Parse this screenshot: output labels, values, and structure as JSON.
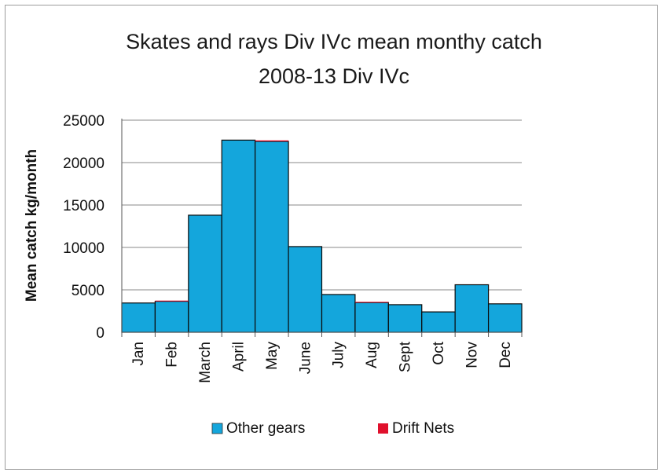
{
  "chart_data": {
    "type": "bar",
    "title_lines": [
      "Skates and rays Div IVc mean monthy catch",
      "2008-13 Div IVc"
    ],
    "ylabel": "Mean catch kg/month",
    "xlabel": "",
    "categories": [
      "Jan",
      "Feb",
      "March",
      "April",
      "May",
      "June",
      "July",
      "Aug",
      "Sept",
      "Oct",
      "Nov",
      "Dec"
    ],
    "stacked": true,
    "series": [
      {
        "name": "Other gears",
        "color": "#14a6dc",
        "values": [
          3450,
          3650,
          13800,
          22650,
          22500,
          10100,
          4450,
          3500,
          3250,
          2400,
          5600,
          3350
        ]
      },
      {
        "name": "Drift Nets",
        "color": "#e0102c",
        "values": [
          0,
          80,
          0,
          0,
          120,
          0,
          0,
          90,
          0,
          0,
          0,
          0
        ]
      }
    ],
    "ylim": [
      0,
      25000
    ],
    "yticks": [
      "0",
      "5000",
      "10000",
      "15000",
      "20000",
      "25000"
    ],
    "grid": true,
    "legend_position": "bottom"
  }
}
